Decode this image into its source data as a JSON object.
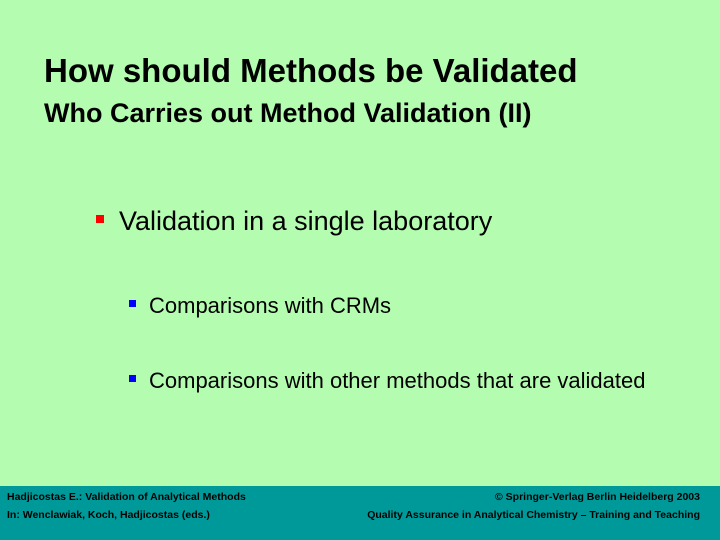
{
  "slide": {
    "title": "How should Methods be Validated",
    "subtitle": "Who Carries out Method Validation (II)",
    "bullets": [
      {
        "text": "Validation in a single laboratory",
        "sub": [
          "Comparisons with CRMs",
          "Comparisons with other methods that are validated"
        ]
      }
    ]
  },
  "footer": {
    "left_top": "Hadjicostas E.: Validation of Analytical Methods",
    "left_bottom": "In:  Wenclawiak, Koch, Hadjicostas (eds.)",
    "right_top": "© Springer-Verlag Berlin Heidelberg 2003",
    "right_bottom": "Quality Assurance in Analytical Chemistry – Training and Teaching"
  },
  "colors": {
    "background": "#b4fcb0",
    "footer": "#009999",
    "bullet1": "#ff0000",
    "bullet2": "#0000ff"
  }
}
